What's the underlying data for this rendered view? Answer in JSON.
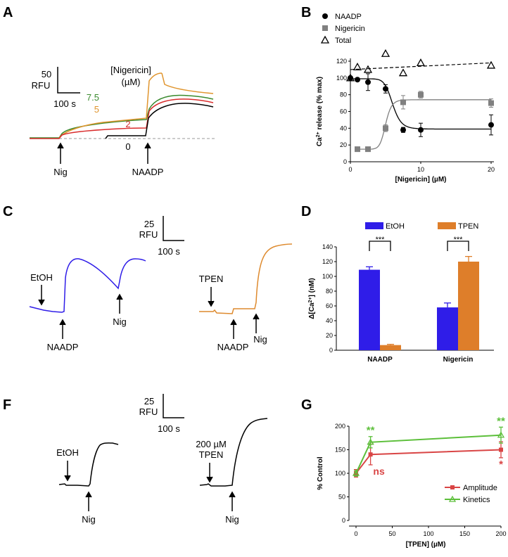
{
  "panels": {
    "A": {
      "label": "A",
      "scale_y": "50",
      "scale_y_unit": "RFU",
      "scale_x": "100 s",
      "legend_title_1": "[Nigericin]",
      "legend_title_2": "(µM)",
      "trace_labels": [
        "7.5",
        "5",
        "2",
        "0"
      ],
      "arrow_left": "Nig",
      "arrow_right": "NAADP",
      "colors": {
        "7.5": "#3a8a2e",
        "5": "#e0952e",
        "2": "#d92c2c",
        "0": "#000000"
      }
    },
    "C": {
      "label": "C",
      "scale_y": "25",
      "scale_y_unit": "RFU",
      "scale_x": "100 s",
      "left_pre": "EtOH",
      "left_naadp": "NAADP",
      "left_nig": "Nig",
      "right_pre": "TPEN",
      "right_naadp": "NAADP",
      "right_nig": "Nig",
      "colors": {
        "EtOH": "#2f1de8",
        "TPEN": "#de8a2e"
      }
    },
    "F": {
      "label": "F",
      "scale_y": "25",
      "scale_y_unit": "RFU",
      "scale_x": "100 s",
      "left_pre": "EtOH",
      "left_nig": "Nig",
      "right_pre_1": "200 µM",
      "right_pre_2": "TPEN",
      "right_nig": "Nig"
    }
  },
  "chart_data": [
    {
      "panel": "B",
      "type": "scatter",
      "xlabel": "[Nigericin] (µM)",
      "ylabel": "Ca2+ release (% max)",
      "xlim": [
        0,
        20
      ],
      "ylim": [
        0,
        120
      ],
      "xticks": [
        0,
        10,
        20
      ],
      "yticks": [
        0,
        20,
        40,
        60,
        80,
        100,
        120
      ],
      "legend_placement": "top-left",
      "series": [
        {
          "name": "NAADP",
          "marker": "circle",
          "color": "#000000",
          "x": [
            0,
            1,
            2.5,
            5,
            7.5,
            10,
            20
          ],
          "y": [
            100,
            98,
            95,
            87,
            38,
            38,
            44
          ],
          "err": [
            0,
            2,
            10,
            5,
            3,
            8,
            12
          ]
        },
        {
          "name": "Nigericin",
          "marker": "square",
          "color": "#808080",
          "x": [
            1,
            2.5,
            5,
            7.5,
            10,
            20
          ],
          "y": [
            15,
            15,
            40,
            71,
            80,
            70
          ],
          "err": [
            0,
            0,
            4,
            8,
            4,
            5
          ]
        },
        {
          "name": "Total",
          "marker": "triangle",
          "color": "#000000",
          "x": [
            0,
            1,
            2.5,
            5,
            7.5,
            10,
            20
          ],
          "y": [
            100,
            113,
            110,
            129,
            106,
            118,
            115
          ],
          "err": [
            0,
            0,
            0,
            0,
            0,
            0,
            0
          ]
        }
      ]
    },
    {
      "panel": "D",
      "type": "bar",
      "ylabel": "Δ[Ca2+] (nM)",
      "categories": [
        "NAADP",
        "Nigericin"
      ],
      "ylim": [
        0,
        140
      ],
      "yticks": [
        0,
        20,
        40,
        60,
        80,
        100,
        120,
        140
      ],
      "legend_placement": "top",
      "significance": [
        "***",
        "***"
      ],
      "series": [
        {
          "name": "EtOH",
          "color": "#2f1de8",
          "values": [
            109,
            58
          ],
          "err": [
            4,
            6
          ]
        },
        {
          "name": "TPEN",
          "color": "#de7e2a",
          "values": [
            7,
            120
          ],
          "err": [
            1,
            7
          ]
        }
      ]
    },
    {
      "panel": "G",
      "type": "line",
      "xlabel": "[TPEN] (µM)",
      "ylabel": "% Control",
      "xlim": [
        0,
        200
      ],
      "ylim": [
        0,
        200
      ],
      "xticks": [
        0,
        50,
        100,
        150,
        200
      ],
      "yticks": [
        0,
        50,
        100,
        150,
        200
      ],
      "legend_placement": "bottom-right",
      "series": [
        {
          "name": "Amplitude",
          "marker": "square",
          "color": "#d94545",
          "x": [
            0,
            20,
            200
          ],
          "y": [
            100,
            140,
            150
          ],
          "err": [
            8,
            22,
            17
          ],
          "annotations": [
            "",
            "ns",
            "*"
          ]
        },
        {
          "name": "Kinetics",
          "marker": "triangle",
          "color": "#5cbf3a",
          "x": [
            0,
            20,
            200
          ],
          "y": [
            100,
            166,
            181
          ],
          "err": [
            6,
            12,
            17
          ],
          "annotations": [
            "",
            "**",
            "**"
          ]
        }
      ]
    }
  ]
}
